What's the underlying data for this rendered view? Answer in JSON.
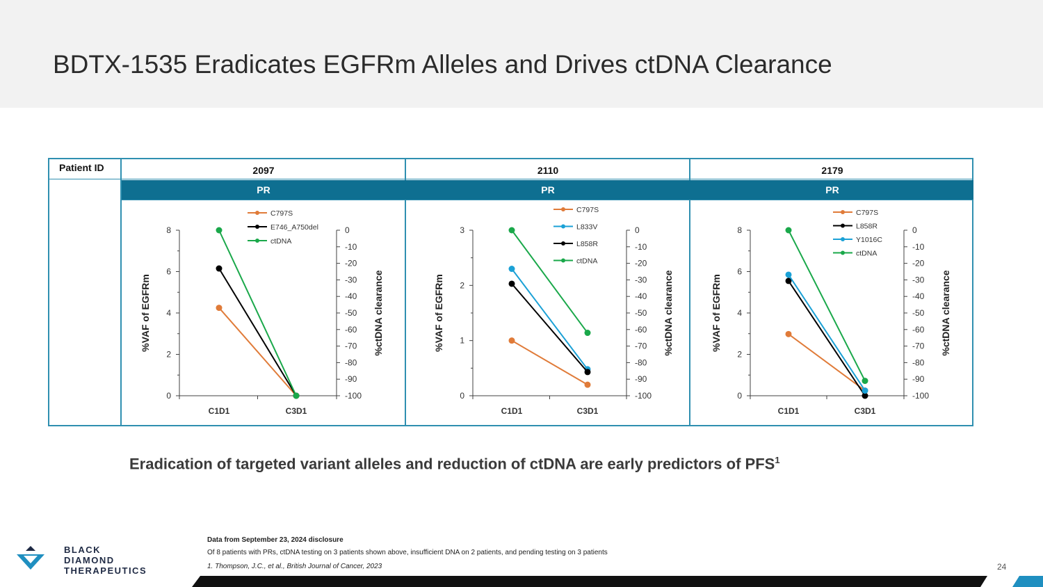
{
  "slide": {
    "title": "BDTX-1535 Eradicates EGFRm Alleles and Drives ctDNA Clearance",
    "subtitle": "Eradication of targeted variant alleles and reduction of ctDNA are early predictors of PFS",
    "subtitle_sup": "1",
    "page_number": "24"
  },
  "table": {
    "patient_id_label": "Patient ID",
    "patients": [
      "2097",
      "2110",
      "2179"
    ],
    "responses": [
      "PR",
      "PR",
      "PR"
    ]
  },
  "footnotes": {
    "source": "Data from September 23, 2024 disclosure",
    "note": "Of 8 patients with PRs, ctDNA testing on 3 patients shown above, insufficient DNA on 2 patients, and pending testing on 3 patients",
    "reference": "1. Thompson, J.C., et al., British Journal of Cancer, 2023"
  },
  "logo": {
    "line1": "BLACK",
    "line2": "DIAMOND",
    "line3": "THERAPEUTICS"
  },
  "colors": {
    "accent": "#0e6f91",
    "border": "#2f8fb0",
    "orange": "#e07b39",
    "black": "#000000",
    "blue": "#1ba1d6",
    "green": "#1aa84a"
  },
  "chart_data": [
    {
      "type": "line",
      "patient": "2097",
      "categories": [
        "C1D1",
        "C3D1"
      ],
      "ylabel": "%VAF of EGFRm",
      "y2label": "%ctDNA clearance",
      "ylim": [
        0,
        8
      ],
      "yticks": [
        0,
        2,
        4,
        6,
        8
      ],
      "y2lim": [
        -100,
        0
      ],
      "y2ticks": [
        0,
        -10,
        -20,
        -30,
        -40,
        -50,
        -60,
        -70,
        -80,
        -90,
        -100
      ],
      "series": [
        {
          "name": "C797S",
          "axis": "left",
          "color": "#e07b39",
          "values": [
            4.25,
            0
          ]
        },
        {
          "name": "E746_A750del",
          "axis": "left",
          "color": "#000000",
          "values": [
            6.15,
            0
          ]
        },
        {
          "name": "ctDNA",
          "axis": "right",
          "color": "#1aa84a",
          "values": [
            0,
            -100
          ]
        }
      ]
    },
    {
      "type": "line",
      "patient": "2110",
      "categories": [
        "C1D1",
        "C3D1"
      ],
      "ylabel": "%VAF of EGFRm",
      "y2label": "%ctDNA clearance",
      "ylim": [
        0,
        3
      ],
      "yticks": [
        0,
        1,
        2,
        3
      ],
      "y2lim": [
        -100,
        0
      ],
      "y2ticks": [
        0,
        -10,
        -20,
        -30,
        -40,
        -50,
        -60,
        -70,
        -80,
        -90,
        -100
      ],
      "series": [
        {
          "name": "C797S",
          "axis": "left",
          "color": "#e07b39",
          "values": [
            1.0,
            0.2
          ]
        },
        {
          "name": "L833V",
          "axis": "left",
          "color": "#1ba1d6",
          "values": [
            2.3,
            0.48
          ]
        },
        {
          "name": "L858R",
          "axis": "left",
          "color": "#000000",
          "values": [
            2.03,
            0.43
          ]
        },
        {
          "name": "ctDNA",
          "axis": "right",
          "color": "#1aa84a",
          "values": [
            0,
            -62
          ]
        }
      ]
    },
    {
      "type": "line",
      "patient": "2179",
      "categories": [
        "C1D1",
        "C3D1"
      ],
      "ylabel": "%VAF of EGFRm",
      "y2label": "%ctDNA clearance",
      "ylim": [
        0,
        8
      ],
      "yticks": [
        0,
        2,
        4,
        6,
        8
      ],
      "y2lim": [
        -100,
        0
      ],
      "y2ticks": [
        0,
        -10,
        -20,
        -30,
        -40,
        -50,
        -60,
        -70,
        -80,
        -90,
        -100
      ],
      "series": [
        {
          "name": "C797S",
          "axis": "left",
          "color": "#e07b39",
          "values": [
            2.98,
            0.25
          ]
        },
        {
          "name": "L858R",
          "axis": "left",
          "color": "#000000",
          "values": [
            5.55,
            0
          ]
        },
        {
          "name": "Y1016C",
          "axis": "left",
          "color": "#1ba1d6",
          "values": [
            5.85,
            0.25
          ]
        },
        {
          "name": "ctDNA",
          "axis": "right",
          "color": "#1aa84a",
          "values": [
            0,
            -91
          ]
        }
      ]
    }
  ]
}
